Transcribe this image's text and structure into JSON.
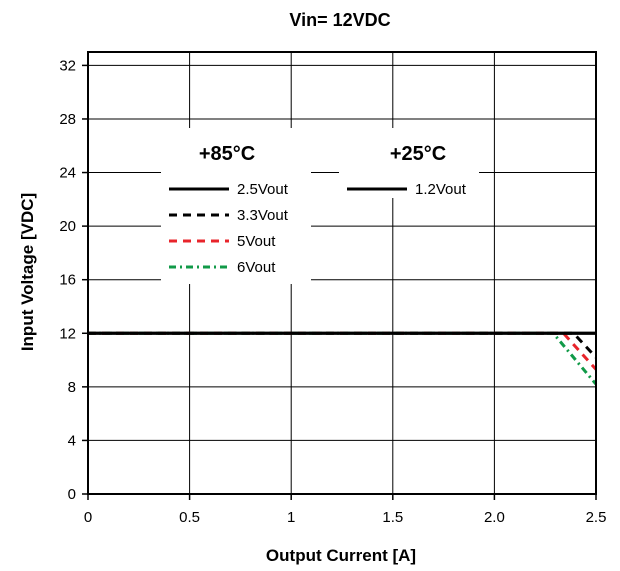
{
  "chart_data": {
    "type": "line",
    "title": "Vin= 12VDC",
    "xlabel": "Output Current [A]",
    "ylabel": "Input Voltage [VDC]",
    "xlim": [
      0,
      2.5
    ],
    "ylim": [
      0,
      33
    ],
    "xticks": [
      "0",
      "0.5",
      "1",
      "1.5",
      "2.0",
      "2.5"
    ],
    "yticks": [
      "0",
      "4",
      "8",
      "12",
      "16",
      "20",
      "24",
      "28",
      "32"
    ],
    "grid": true,
    "legend_groups": [
      {
        "heading": "+85°C",
        "series": [
          "2.5Vout",
          "3.3Vout",
          "5Vout",
          "6Vout"
        ]
      },
      {
        "heading": "+25°C",
        "series": [
          "1.2Vout"
        ]
      }
    ],
    "series": [
      {
        "name": "2.5Vout",
        "color": "#000000",
        "dash": "solid",
        "points": [
          [
            0,
            12
          ],
          [
            2.5,
            12
          ]
        ]
      },
      {
        "name": "3.3Vout",
        "color": "#000000",
        "dash": "dash",
        "points": [
          [
            0,
            12
          ],
          [
            2.39,
            12
          ],
          [
            2.5,
            10.2
          ]
        ]
      },
      {
        "name": "5Vout",
        "color": "#e8242b",
        "dash": "dash",
        "points": [
          [
            0,
            12
          ],
          [
            2.34,
            12
          ],
          [
            2.5,
            9.3
          ]
        ]
      },
      {
        "name": "6Vout",
        "color": "#119a48",
        "dash": "dashdot",
        "points": [
          [
            0,
            12
          ],
          [
            2.29,
            12
          ],
          [
            2.5,
            8.2
          ]
        ]
      },
      {
        "name": "1.2Vout",
        "color": "#000000",
        "dash": "solid",
        "points": [
          [
            0,
            12
          ],
          [
            2.5,
            12
          ]
        ]
      }
    ]
  }
}
